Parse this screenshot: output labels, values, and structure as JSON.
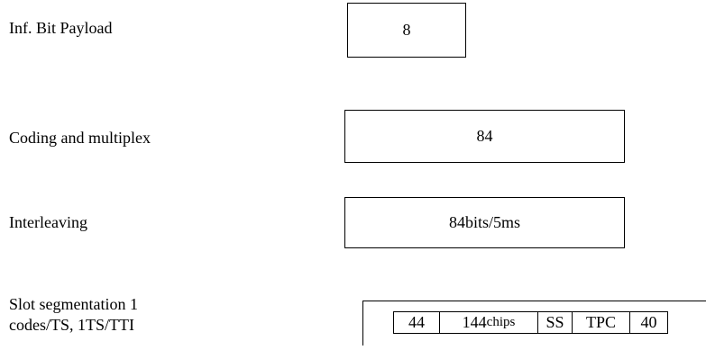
{
  "stages": [
    {
      "label": "Inf. Bit Payload",
      "value": "8"
    },
    {
      "label": "Coding and multiplex",
      "value": "84"
    },
    {
      "label": "Interleaving",
      "value": "84bits/5ms"
    }
  ],
  "segmentation": {
    "label_line1": "Slot segmentation 1",
    "label_line2": "codes/TS, 1TS/TTI",
    "fields": [
      {
        "value": "44"
      },
      {
        "value": "144",
        "suffix": "chips"
      },
      {
        "value": "SS"
      },
      {
        "value": "TPC"
      },
      {
        "value": "40"
      }
    ]
  }
}
